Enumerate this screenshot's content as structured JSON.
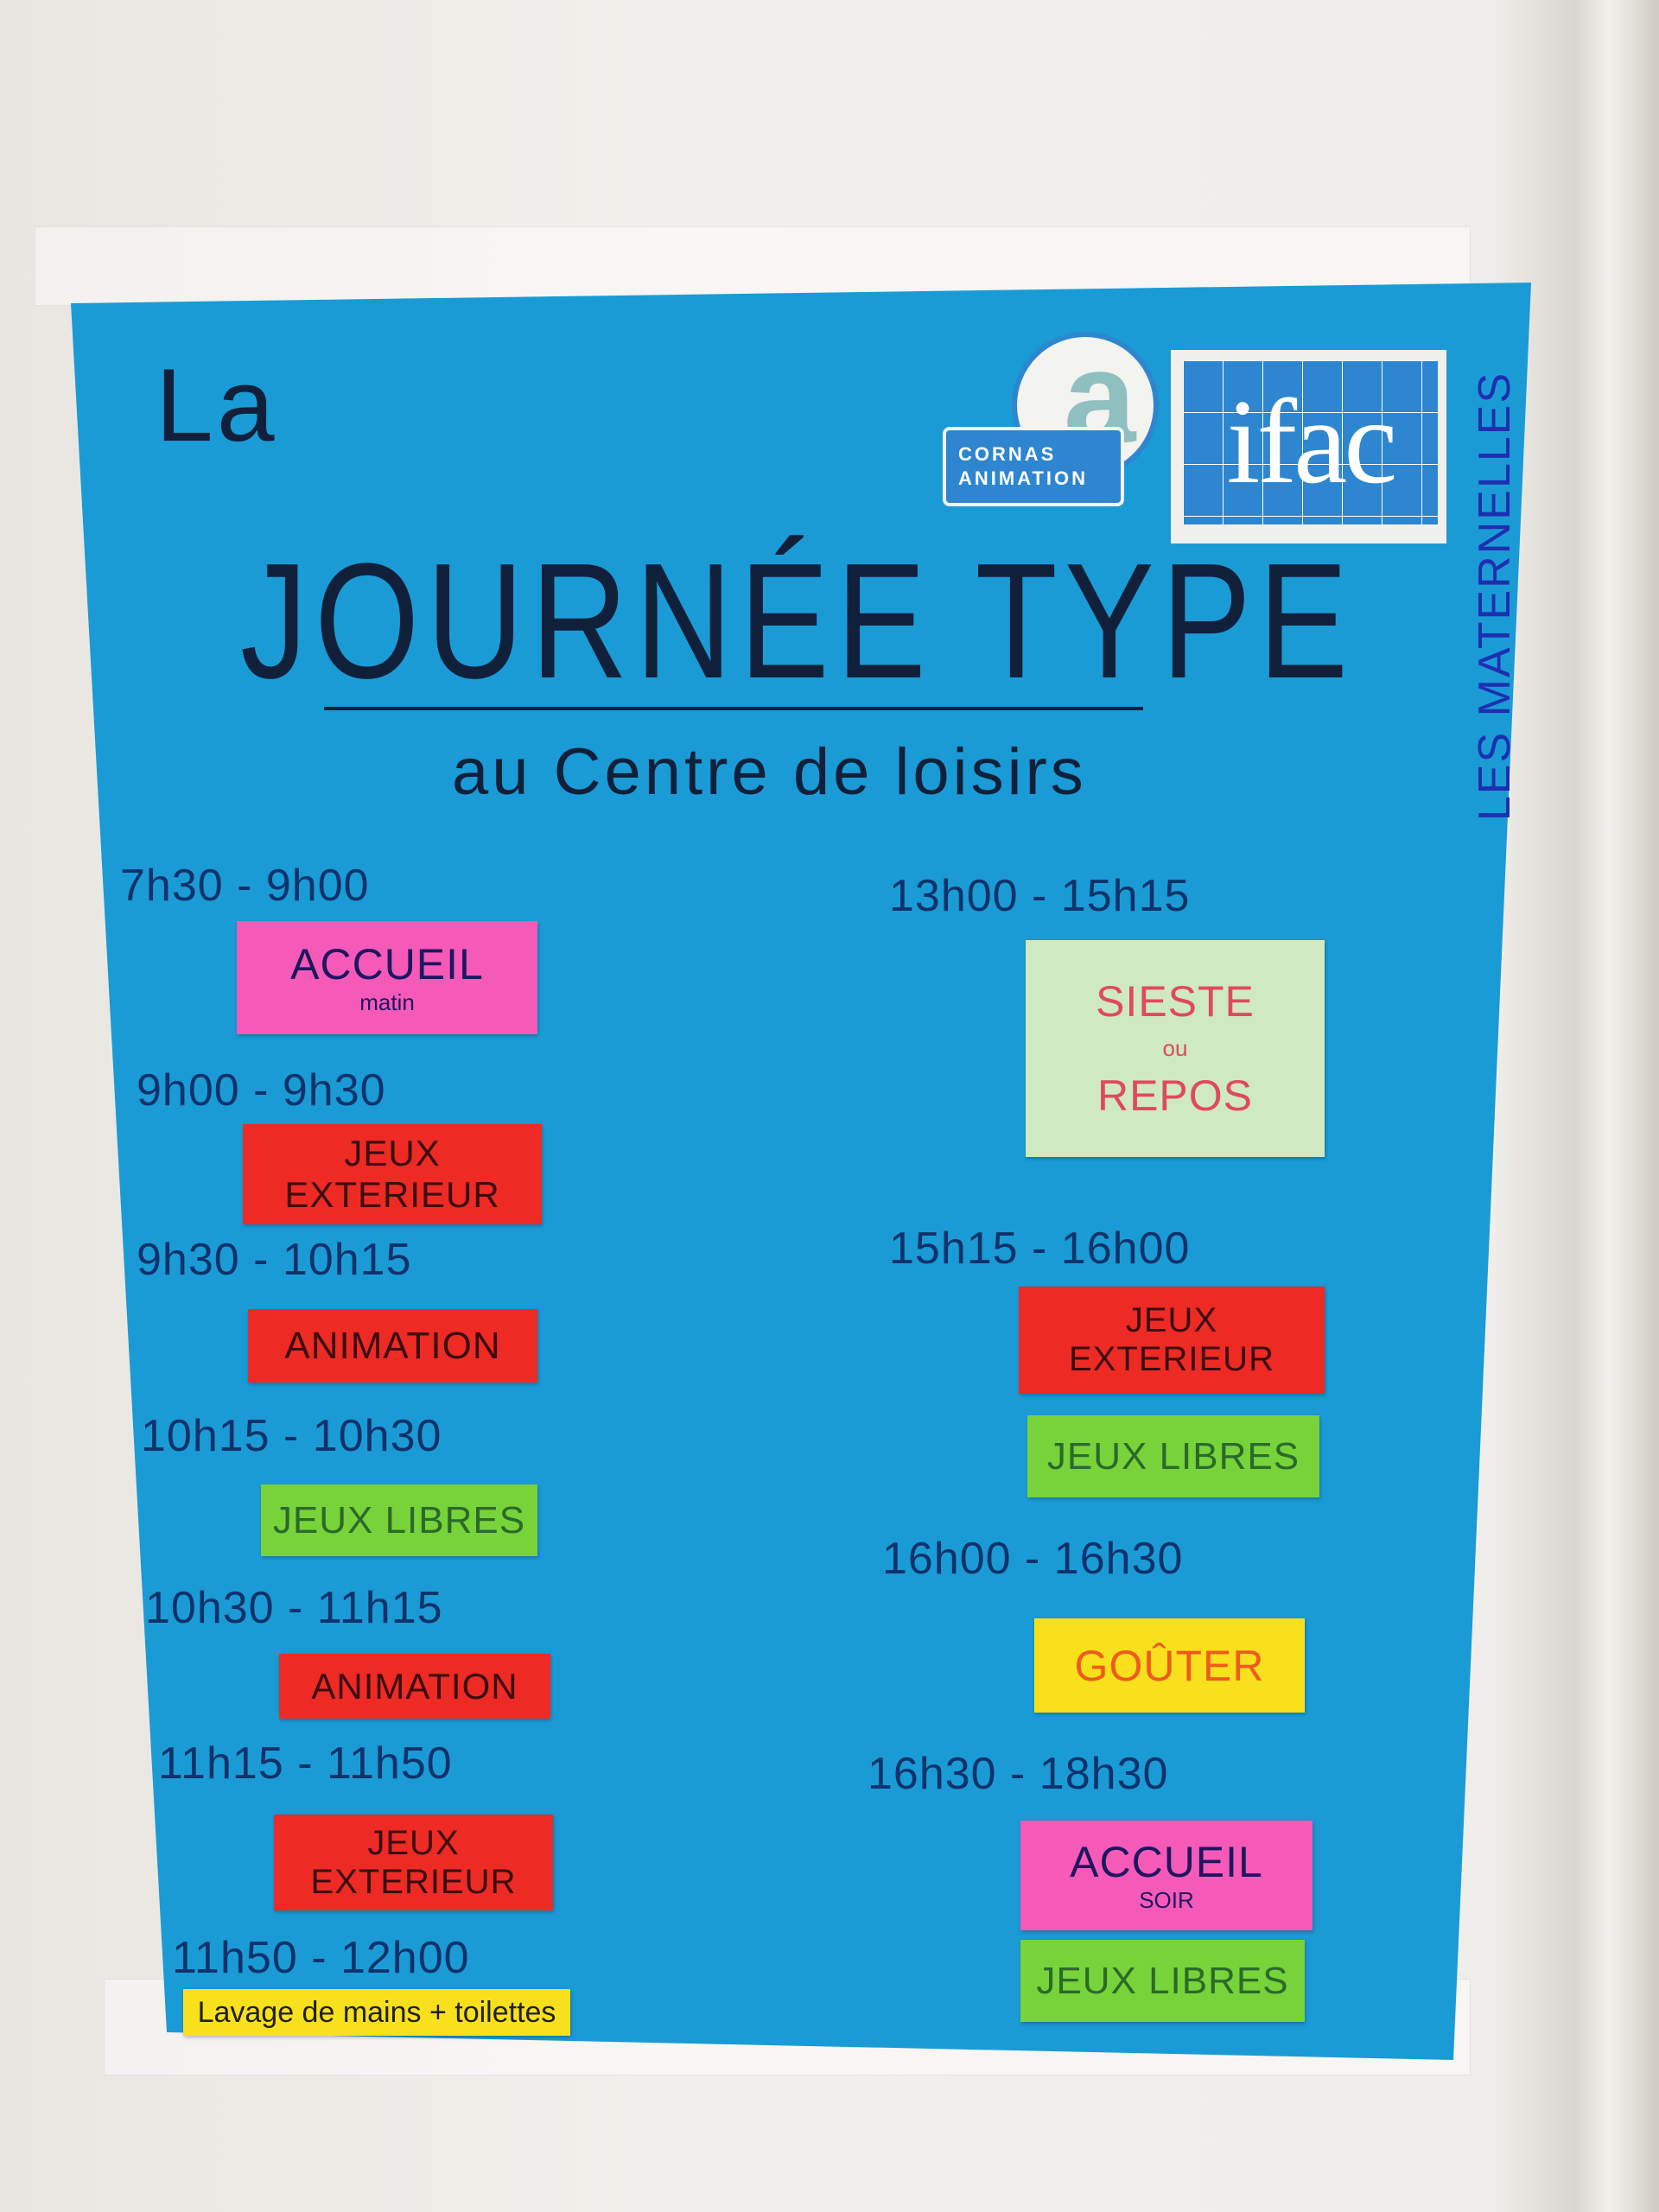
{
  "poster": {
    "title_prefix": "La",
    "title": "JOURNÉE TYPE",
    "subtitle": "au Centre de loisirs",
    "side_label": "LES MATERNELLES",
    "background_color": "#1a9bd6",
    "logos": {
      "cornas": {
        "letter": "a",
        "line1": "CORNAS",
        "line2": "ANIMATION"
      },
      "ifac": {
        "text": "ifac"
      }
    },
    "left_column": [
      {
        "time": "7h30 - 9h00",
        "activity": "ACCUEIL",
        "detail": "matin",
        "color": "#f55ab9"
      },
      {
        "time": "9h00 - 9h30",
        "activity": "JEUX EXTERIEUR",
        "color": "#ee2a24"
      },
      {
        "time": "9h30 - 10h15",
        "activity": "ANIMATION",
        "color": "#ee2a24"
      },
      {
        "time": "10h15 - 10h30",
        "activity": "JEUX LIBRES",
        "color": "#78d33a"
      },
      {
        "time": "10h30 - 11h15",
        "activity": "ANIMATION",
        "color": "#ee2a24"
      },
      {
        "time": "11h15 - 11h50",
        "activity": "JEUX EXTERIEUR",
        "color": "#ee2a24"
      },
      {
        "time": "11h50 - 12h00",
        "activity": "Lavage de mains + toilettes",
        "color": "#f8e01c"
      }
    ],
    "right_column": [
      {
        "time": "13h00 - 15h15",
        "activity": "SIESTE",
        "connector": "ou",
        "activity2": "REPOS",
        "color": "#cfeac3"
      },
      {
        "time": "15h15 - 16h00",
        "activity": "JEUX EXTERIEUR",
        "activity_b": "JEUX LIBRES",
        "color": "#ee2a24",
        "color_b": "#78d33a"
      },
      {
        "time": "16h00 - 16h30",
        "activity": "GOÛTER",
        "color": "#f8e01c"
      },
      {
        "time": "16h30 - 18h30",
        "activity": "ACCUEIL",
        "detail": "soir",
        "activity_b": "JEUX LIBRES",
        "color": "#f55ab9",
        "color_b": "#78d33a"
      }
    ]
  }
}
